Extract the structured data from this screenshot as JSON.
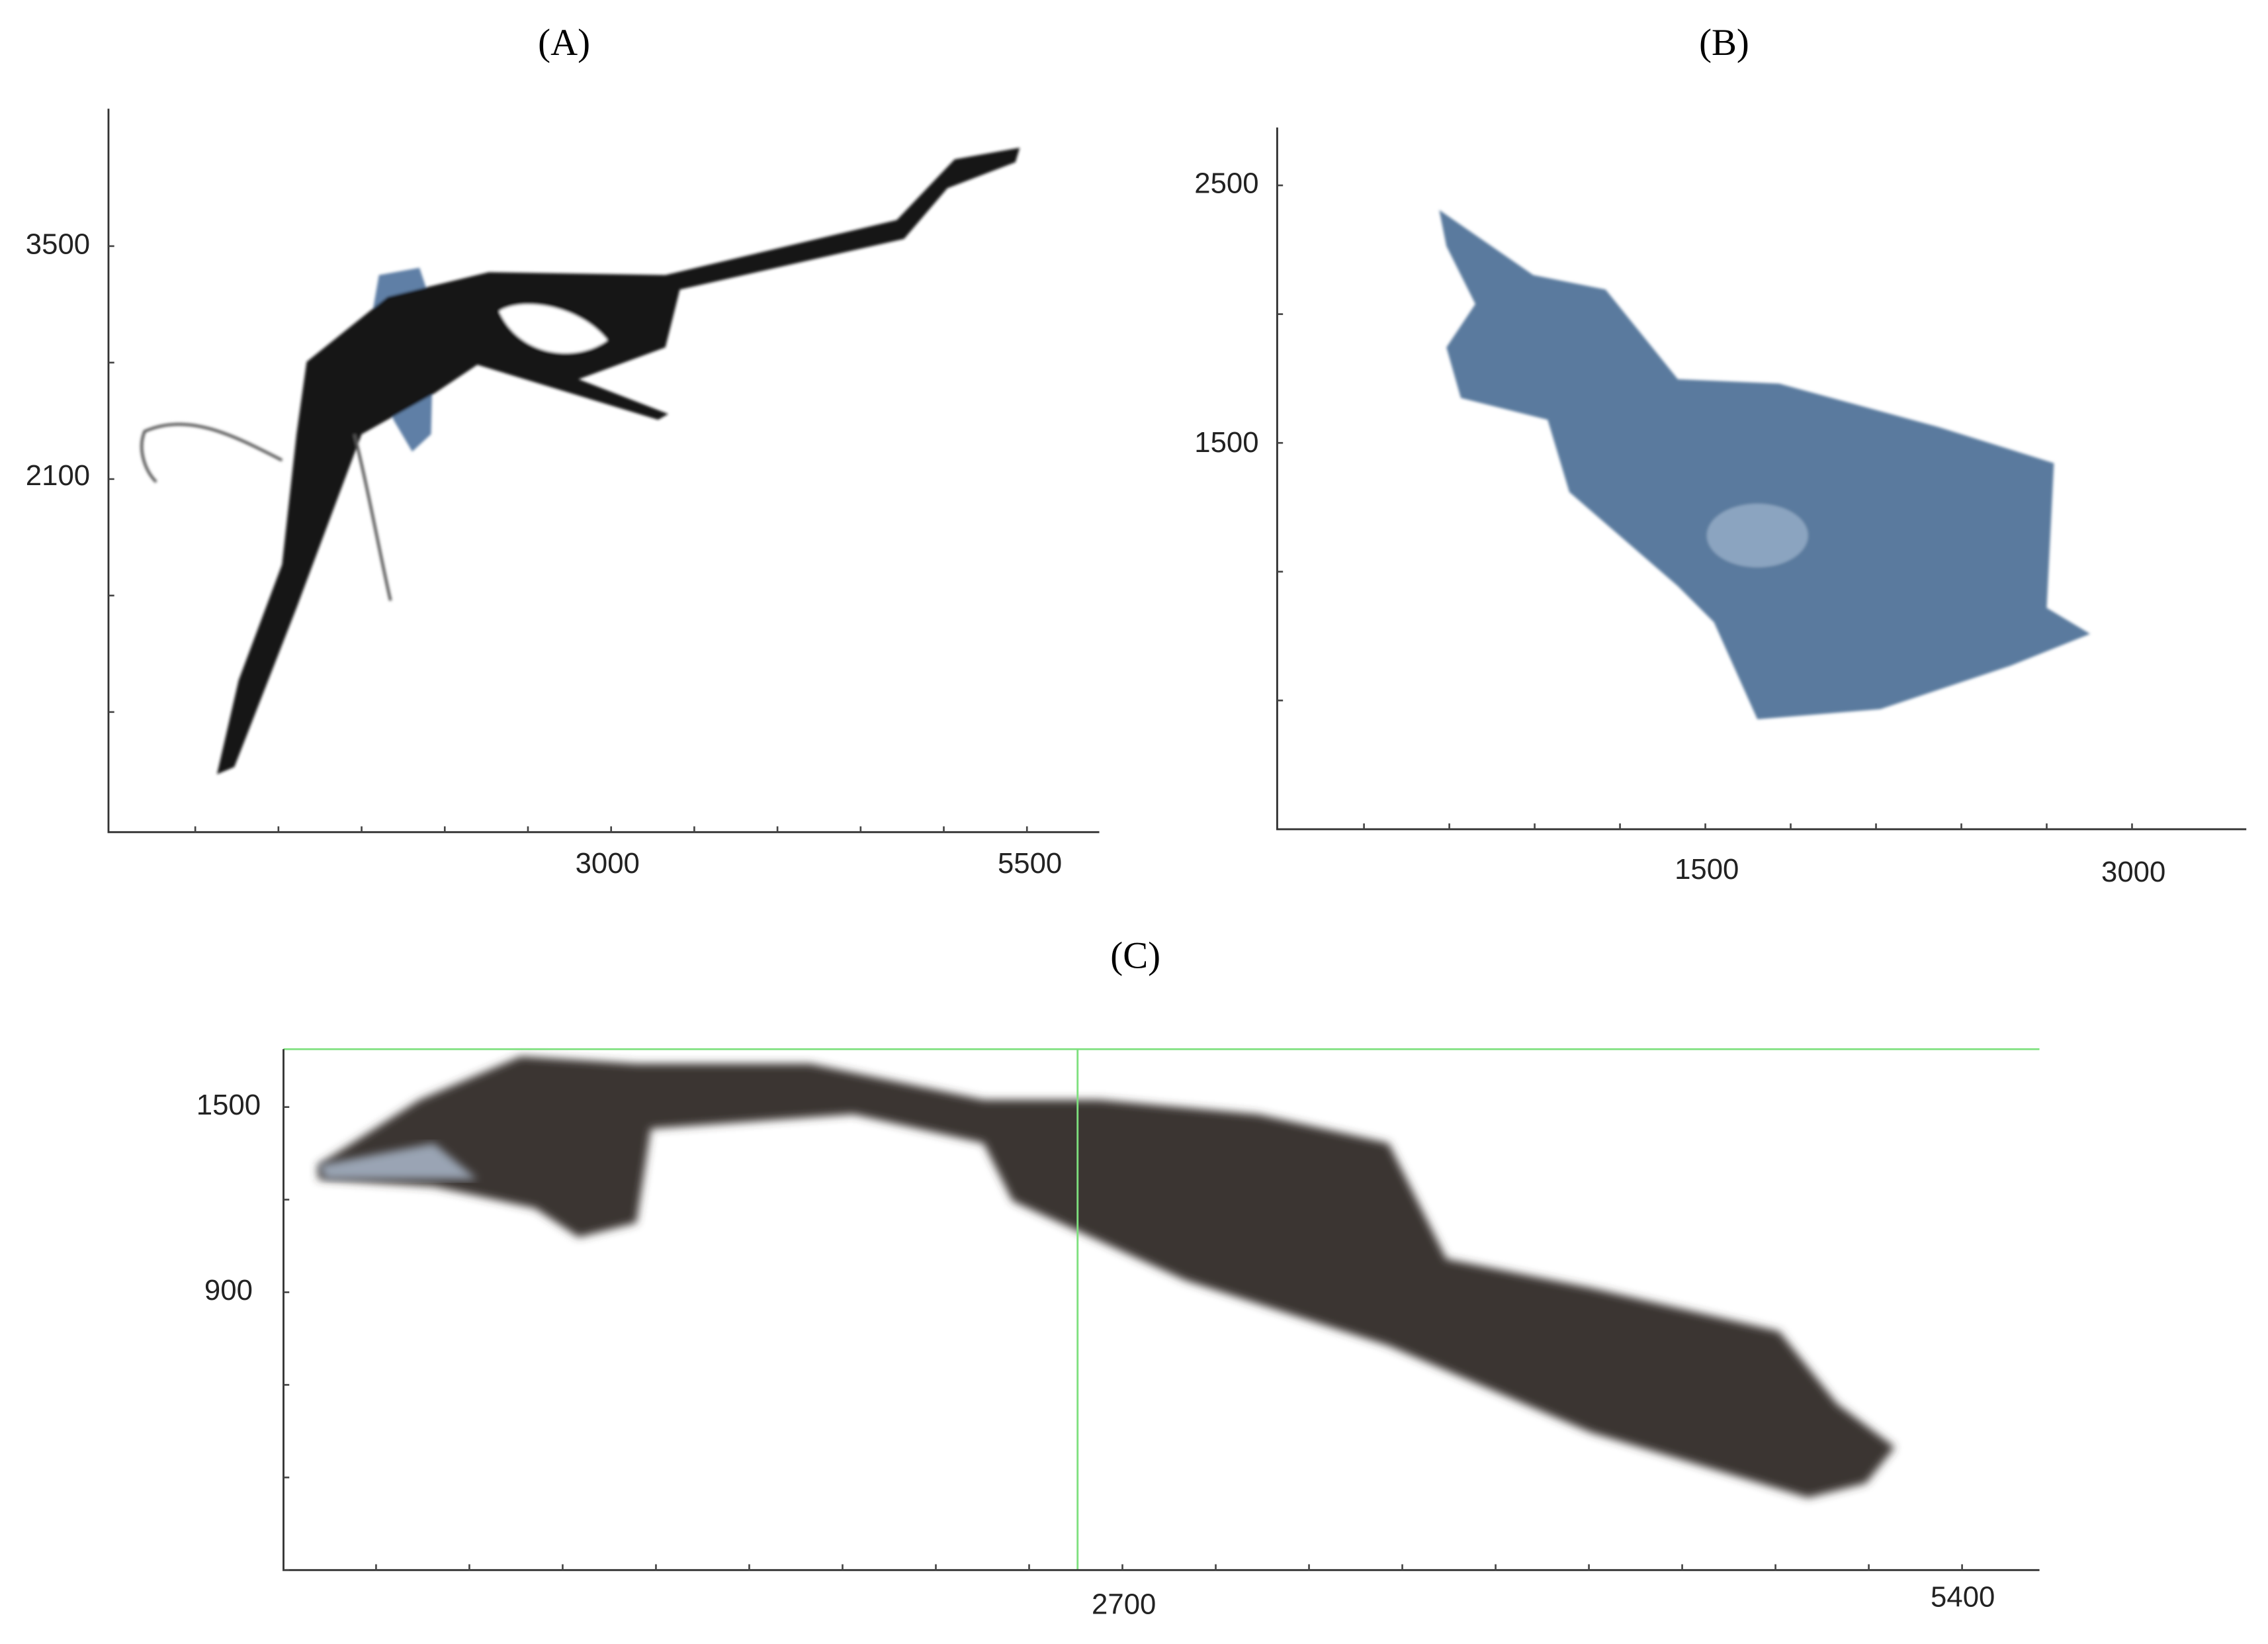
{
  "panels": [
    {
      "label": "(A)",
      "xticks": [
        3000,
        5500
      ],
      "yticks": [
        3500,
        2100
      ]
    },
    {
      "label": "(B)",
      "xticks": [
        1500,
        3000
      ],
      "yticks": [
        2500,
        1500
      ]
    },
    {
      "label": "(C)",
      "xticks": [
        2700,
        5400
      ],
      "yticks": [
        1500,
        900
      ]
    }
  ]
}
